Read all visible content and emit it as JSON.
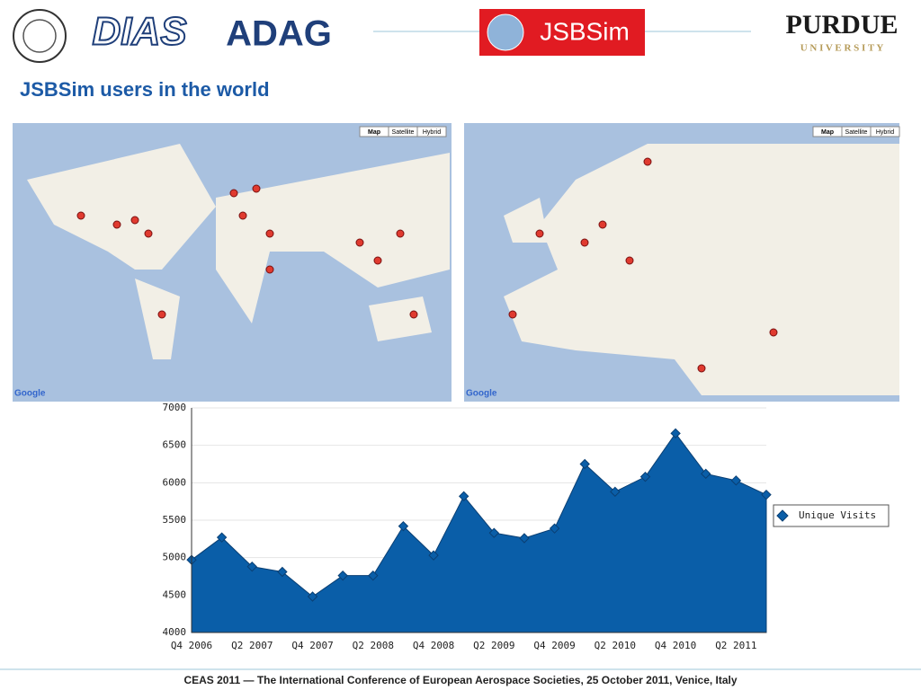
{
  "header": {
    "title": "JSBSim users in the world",
    "logos": {
      "dias": "DIAS",
      "adag": "ADAG",
      "jsbsim": "JSBSim",
      "purdue": "PURDUE",
      "university": "U N I V E R S I T Y"
    }
  },
  "maps": {
    "buttons": [
      "Map",
      "Satellite",
      "Hybrid"
    ],
    "google": "Google"
  },
  "footer": "CEAS 2011 — The International Conference of European Aerospace Societies, 25 October 2011, Venice, Italy",
  "chart_data": {
    "type": "area",
    "categories": [
      "Q4 2006",
      null,
      "Q2 2007",
      null,
      "Q4 2007",
      null,
      "Q2 2008",
      null,
      "Q4 2008",
      null,
      "Q2 2009",
      null,
      "Q4 2009",
      null,
      "Q2 2010",
      null,
      "Q4 2010",
      null,
      "Q2 2011",
      null
    ],
    "series": [
      {
        "name": "Unique Visits",
        "color": "#0a5ea8",
        "values": [
          4970,
          5270,
          4880,
          4810,
          4480,
          4760,
          4760,
          5420,
          5030,
          5820,
          5330,
          5260,
          5390,
          6250,
          5880,
          6080,
          6660,
          6120,
          6030,
          5840
        ]
      }
    ],
    "ylim": [
      4000,
      7000
    ],
    "yticks": [
      4000,
      4500,
      5000,
      5500,
      6000,
      6500,
      7000
    ],
    "grid": true,
    "legend": "right"
  }
}
